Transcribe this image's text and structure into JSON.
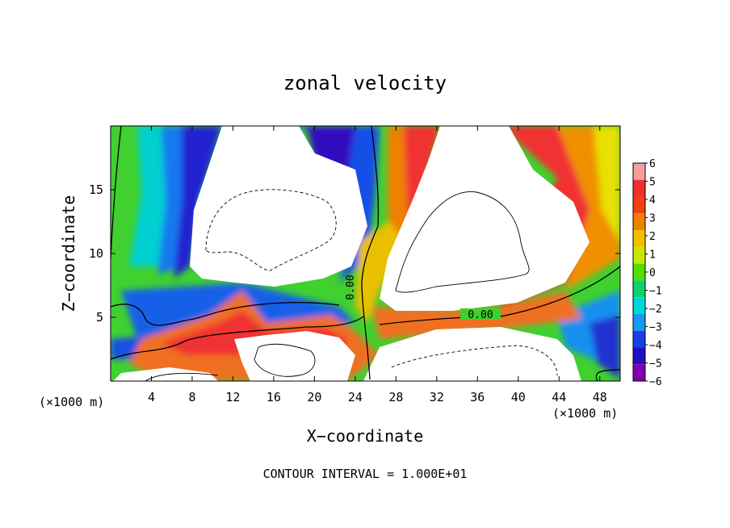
{
  "chart_data": {
    "type": "heatmap",
    "title": "zonal velocity",
    "xlabel": "X−coordinate",
    "ylabel": "Z−coordinate",
    "x_unit": "(×1000 m)",
    "x_unit_right": "(×1000 m)",
    "xlim": [
      0,
      50
    ],
    "ylim": [
      0,
      20
    ],
    "x_ticks": [
      4,
      8,
      12,
      16,
      20,
      24,
      28,
      32,
      36,
      40,
      44,
      48
    ],
    "y_ticks": [
      5,
      10,
      15
    ],
    "colorbar": {
      "levels": [
        6,
        5,
        4,
        3,
        2,
        1,
        0,
        -1,
        -2,
        -3,
        -4,
        -5,
        -6
      ],
      "labels": [
        "6",
        "5",
        "4",
        "3",
        "2",
        "1",
        "0",
        "−1",
        "−2",
        "−3",
        "−4",
        "−5",
        "−6"
      ],
      "colors": [
        "#f4a0a0",
        "#f03030",
        "#f04010",
        "#f08000",
        "#f0c000",
        "#c8e800",
        "#50e000",
        "#10d070",
        "#00d8d8",
        "#1898f0",
        "#1840e8",
        "#2010c0",
        "#8000b0"
      ]
    },
    "contour_label": "0.00",
    "contour_interval_text": "CONTOUR INTERVAL = 1.000E+01"
  }
}
